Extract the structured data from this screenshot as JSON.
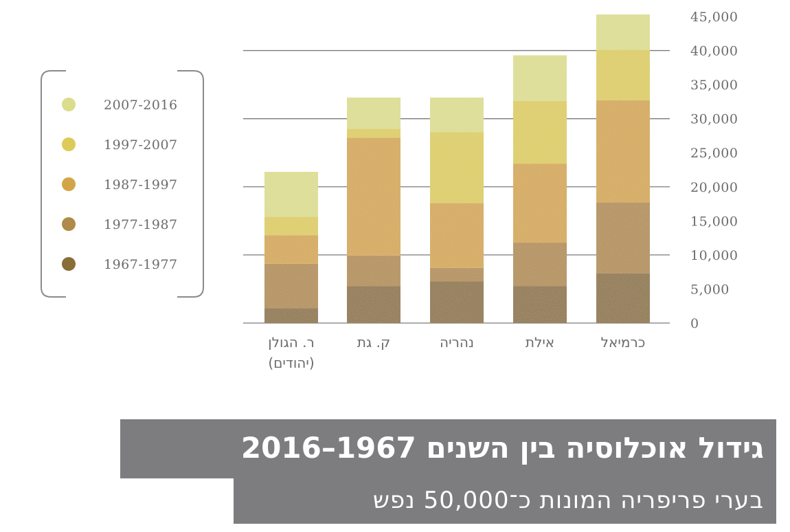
{
  "chart_data": {
    "type": "bar",
    "stacked": true,
    "title": "גידול אוכלוסיה בין השנים 1967–2016",
    "subtitle": "בערי פריפריה המונות כ־50,000 נפש",
    "categories": [
      [
        "ר. הגולן",
        "(יהודים)"
      ],
      [
        "ק. גת"
      ],
      [
        "נהריה"
      ],
      [
        "אילת"
      ],
      [
        "כרמיאל"
      ]
    ],
    "series": [
      {
        "name": "1967-1977",
        "color": "#8a6e37",
        "values": [
          2200,
          5400,
          6100,
          5400,
          7300
        ]
      },
      {
        "name": "1977-1987",
        "color": "#b08a4a",
        "values": [
          6500,
          4500,
          2000,
          6400,
          10400
        ]
      },
      {
        "name": "1987-1997",
        "color": "#d3a548",
        "values": [
          4200,
          17300,
          9500,
          11600,
          15000
        ]
      },
      {
        "name": "1997-2007",
        "color": "#dccb58",
        "values": [
          2700,
          1300,
          10400,
          9200,
          7400
        ]
      },
      {
        "name": "2007-2016",
        "color": "#dbdc8c",
        "values": [
          6600,
          4600,
          5100,
          6700,
          5200
        ]
      }
    ],
    "legend_order": [
      "2007-2016",
      "1997-2007",
      "1987-1997",
      "1977-1987",
      "1967-1977"
    ],
    "legend_position": "left",
    "y_ticks": [
      "0",
      "5,000",
      "10,000",
      "15,000",
      "20,000",
      "25,000",
      "30,000",
      "35,000",
      "40,000",
      "45,000"
    ],
    "ylim": [
      0,
      45000
    ],
    "y_axis_side": "right",
    "grid": true
  }
}
